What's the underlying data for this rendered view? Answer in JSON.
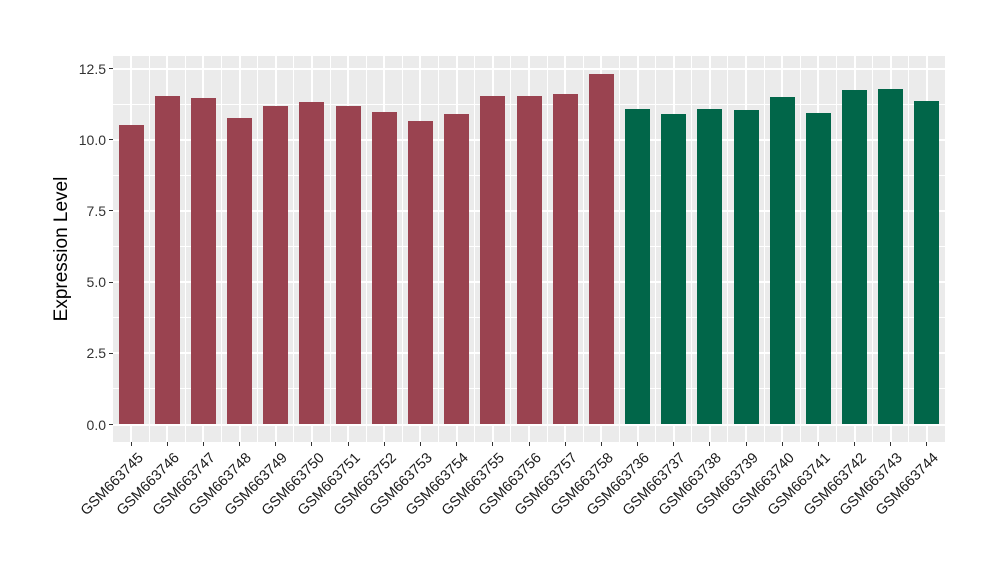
{
  "chart_data": {
    "type": "bar",
    "title": "",
    "xlabel": "",
    "ylabel": "Expression Level",
    "ylim": [
      0,
      12.9
    ],
    "ytick_values": [
      0,
      2.5,
      5,
      7.5,
      10,
      12.5
    ],
    "ytick_labels": [
      "0.0",
      "2.5",
      "5.0",
      "7.5",
      "10.0",
      "12.5"
    ],
    "yminor_values": [
      1.25,
      3.75,
      6.25,
      8.75,
      11.25
    ],
    "grid": "on",
    "legend_position": "none",
    "panel_background": "#EBEBEB",
    "grid_color": "#FFFFFF",
    "tick_color": "#333333",
    "categories": [
      "GSM663745",
      "GSM663746",
      "GSM663747",
      "GSM663748",
      "GSM663749",
      "GSM663750",
      "GSM663751",
      "GSM663752",
      "GSM663753",
      "GSM663754",
      "GSM663755",
      "GSM663756",
      "GSM663757",
      "GSM663758",
      "GSM663736",
      "GSM663737",
      "GSM663738",
      "GSM663739",
      "GSM663740",
      "GSM663741",
      "GSM663742",
      "GSM663743",
      "GSM663744"
    ],
    "values": [
      10.52,
      11.54,
      11.46,
      10.76,
      11.18,
      11.33,
      11.18,
      10.97,
      10.67,
      10.91,
      11.55,
      11.55,
      11.61,
      12.31,
      11.08,
      10.9,
      11.08,
      11.04,
      11.51,
      10.94,
      11.75,
      11.79,
      11.36
    ],
    "groups": [
      "group1",
      "group1",
      "group1",
      "group1",
      "group1",
      "group1",
      "group1",
      "group1",
      "group1",
      "group1",
      "group1",
      "group1",
      "group1",
      "group1",
      "group2",
      "group2",
      "group2",
      "group2",
      "group2",
      "group2",
      "group2",
      "group2",
      "group2"
    ],
    "group_colors": {
      "group1": "#9A4350",
      "group2": "#016649"
    }
  }
}
